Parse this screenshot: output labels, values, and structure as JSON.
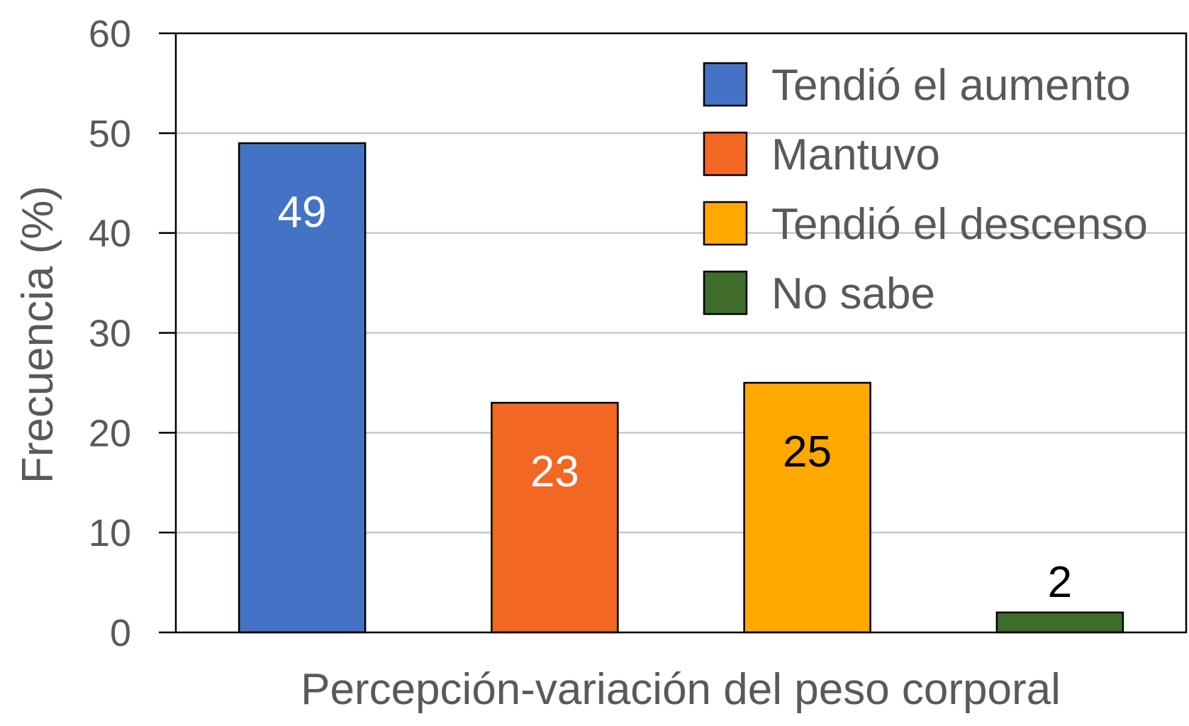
{
  "chart_data": {
    "type": "bar",
    "title": "",
    "xlabel": "Percepción-variación del peso corporal",
    "ylabel": "Frecuencia (%)",
    "ylim": [
      0,
      60
    ],
    "yticks": [
      "0",
      "10",
      "20",
      "30",
      "40",
      "50",
      "60"
    ],
    "grid": true,
    "legend_position": "top-right",
    "series": [
      {
        "name": "Tendió el aumento",
        "value": 49,
        "label": "49",
        "color": "#4472C4",
        "label_color": "#ffffff"
      },
      {
        "name": "Mantuvo",
        "value": 23,
        "label": "23",
        "color": "#F26722",
        "label_color": "#ffffff"
      },
      {
        "name": "Tendió el descenso",
        "value": 25,
        "label": "25",
        "color": "#FFA800",
        "label_color": "#000000"
      },
      {
        "name": "No sabe",
        "value": 2,
        "label": "2",
        "color": "#3F6B2B",
        "label_color": "#000000"
      }
    ]
  }
}
